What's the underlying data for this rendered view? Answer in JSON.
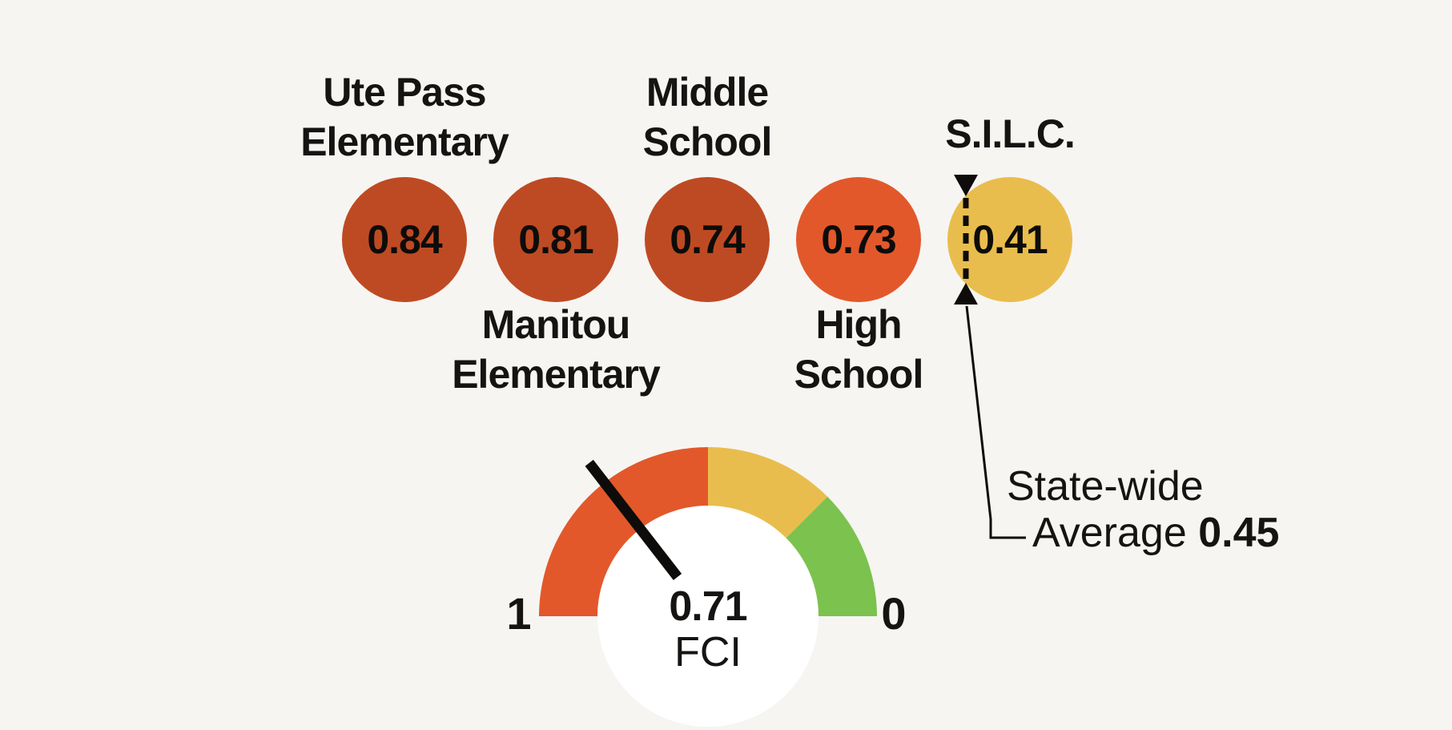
{
  "background": "#F6F5F2",
  "text_color": "#151412",
  "schools": [
    {
      "name": "Ute Pass Elementary",
      "label_lines": [
        "Ute Pass",
        "Elementary"
      ],
      "label_position": "above",
      "value": "0.84",
      "color": "#BE4A23"
    },
    {
      "name": "Manitou Elementary",
      "label_lines": [
        "Manitou",
        "Elementary"
      ],
      "label_position": "below",
      "value": "0.81",
      "color": "#BE4A23"
    },
    {
      "name": "Middle School",
      "label_lines": [
        "Middle",
        "School"
      ],
      "label_position": "above",
      "value": "0.74",
      "color": "#BE4A23"
    },
    {
      "name": "High School",
      "label_lines": [
        "High",
        "School"
      ],
      "label_position": "below",
      "value": "0.73",
      "color": "#E2582B"
    },
    {
      "name": "S.I.L.C.",
      "label_lines": [
        "S.I.L.C."
      ],
      "label_position": "above",
      "value": "0.41",
      "color": "#E9BD4D"
    }
  ],
  "statewide": {
    "line1": "State-wide",
    "line2_label": "Average",
    "value": "0.45"
  },
  "gauge": {
    "value": 0.71,
    "value_label": "0.71",
    "unit_label": "FCI",
    "left_end_label": "1",
    "right_end_label": "0",
    "needle_color": "#0d0c0a",
    "inner_circle_color": "#FFFFFF",
    "segments": [
      {
        "from": 0.5,
        "to": 1.0,
        "color": "#E2582B"
      },
      {
        "from": 0.25,
        "to": 0.5,
        "color": "#E9BD4D"
      },
      {
        "from": 0.0,
        "to": 0.25,
        "color": "#7CC24E"
      }
    ]
  },
  "chart_data": [
    {
      "type": "bar",
      "display_hint": "value badges drawn as colored circles",
      "categories": [
        "Ute Pass Elementary",
        "Manitou Elementary",
        "Middle School",
        "High School",
        "S.I.L.C."
      ],
      "values": [
        0.84,
        0.81,
        0.74,
        0.73,
        0.41
      ],
      "colors": [
        "#BE4A23",
        "#BE4A23",
        "#BE4A23",
        "#E2582B",
        "#E9BD4D"
      ],
      "title": "",
      "xlabel": "",
      "ylabel": "FCI",
      "annotations": [
        {
          "text": "State-wide Average 0.45",
          "value": 0.45,
          "attached_to": "S.I.L.C."
        }
      ]
    },
    {
      "type": "gauge",
      "value": 0.71,
      "label": "FCI",
      "axis_range_left_to_right": [
        1,
        0
      ],
      "segments": [
        {
          "from": 0.5,
          "to": 1.0,
          "color": "#E2582B",
          "meaning": "orange zone"
        },
        {
          "from": 0.25,
          "to": 0.5,
          "color": "#E9BD4D",
          "meaning": "yellow zone"
        },
        {
          "from": 0.0,
          "to": 0.25,
          "color": "#7CC24E",
          "meaning": "green zone"
        }
      ]
    }
  ]
}
